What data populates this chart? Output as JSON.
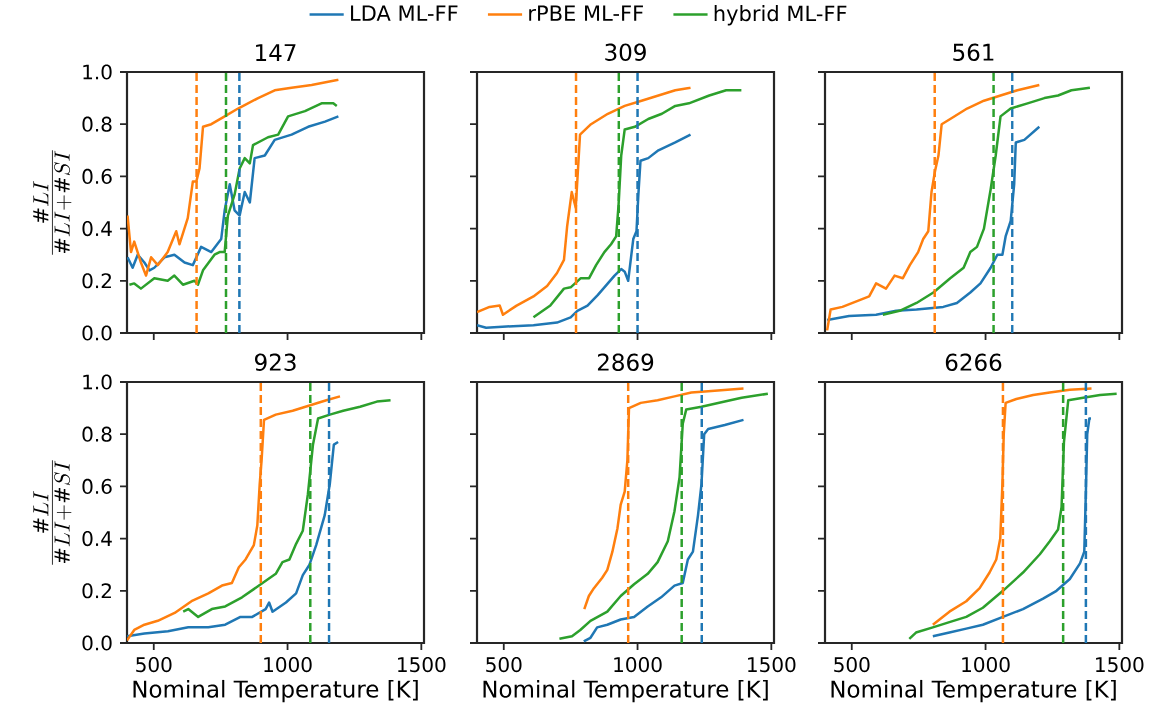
{
  "chart_data": [
    {
      "type": "line",
      "title": "147",
      "ylabel": "\\frac{\\#LI}{\\#LI + \\#SI}",
      "legend": "top",
      "tick_labels": "y",
      "xlim": [
        400,
        1510
      ],
      "ylim": [
        0,
        1
      ],
      "xticks": [
        500,
        1000,
        1500
      ],
      "yticks": [
        {
          "value": 0,
          "label": "0.0"
        },
        {
          "value": 0.2,
          "label": "0.2"
        },
        {
          "value": 0.4,
          "label": "0.4"
        },
        {
          "value": 0.6,
          "label": "0.6"
        },
        {
          "value": 0.8,
          "label": "0.8"
        },
        {
          "value": 1,
          "label": "1.0"
        }
      ],
      "series": [
        {
          "name": "LDA ML-FF",
          "color": "#1f77b4",
          "x": [
            402,
            421,
            440,
            465,
            484,
            502,
            540,
            577,
            615,
            646,
            677,
            715,
            752,
            765,
            784,
            802,
            821,
            840,
            859,
            877,
            915,
            952,
            1015,
            1077,
            1140,
            1190
          ],
          "values": [
            0.29,
            0.25,
            0.3,
            0.27,
            0.24,
            0.25,
            0.29,
            0.3,
            0.27,
            0.26,
            0.33,
            0.31,
            0.36,
            0.47,
            0.57,
            0.47,
            0.45,
            0.54,
            0.5,
            0.67,
            0.68,
            0.74,
            0.76,
            0.79,
            0.81,
            0.83
          ]
        },
        {
          "name": "rPBE ML-FF",
          "color": "#ff7f0e",
          "x": [
            402,
            415,
            427,
            452,
            471,
            490,
            515,
            552,
            584,
            596,
            627,
            646,
            659,
            671,
            684,
            715,
            765,
            815,
            890,
            952,
            1015,
            1090,
            1190
          ],
          "values": [
            0.45,
            0.31,
            0.35,
            0.27,
            0.22,
            0.29,
            0.26,
            0.31,
            0.39,
            0.34,
            0.44,
            0.58,
            0.58,
            0.63,
            0.79,
            0.8,
            0.83,
            0.86,
            0.9,
            0.93,
            0.94,
            0.95,
            0.97
          ]
        },
        {
          "name": "hybrid ML-FF",
          "color": "#2ca02c",
          "x": [
            409,
            427,
            452,
            502,
            552,
            577,
            609,
            652,
            665,
            684,
            727,
            746,
            765,
            777,
            802,
            821,
            840,
            859,
            871,
            927,
            965,
            1002,
            1065,
            1127,
            1171,
            1184
          ],
          "values": [
            0.185,
            0.19,
            0.17,
            0.21,
            0.2,
            0.22,
            0.185,
            0.2,
            0.185,
            0.24,
            0.3,
            0.31,
            0.31,
            0.45,
            0.53,
            0.63,
            0.67,
            0.65,
            0.72,
            0.75,
            0.76,
            0.83,
            0.85,
            0.88,
            0.88,
            0.87
          ]
        }
      ],
      "ref_lines": [
        {
          "axis": "x",
          "value": 820,
          "color": "#1f77b4",
          "line_style": "dashed"
        },
        {
          "axis": "x",
          "value": 660,
          "color": "#ff7f0e",
          "line_style": "dashed"
        },
        {
          "axis": "x",
          "value": 770,
          "color": "#2ca02c",
          "line_style": "dashed"
        }
      ]
    },
    {
      "type": "line",
      "title": "309",
      "tick_labels": false,
      "xlim": [
        400,
        1510
      ],
      "ylim": [
        0,
        1
      ],
      "xticks": [
        500,
        1000,
        1500
      ],
      "yticks": [
        0,
        0.2,
        0.4,
        0.6,
        0.8,
        1
      ],
      "series": [
        {
          "color": "#1f77b4",
          "x": [
            400,
            434,
            510,
            611,
            699,
            750,
            775,
            813,
            851,
            889,
            914,
            939,
            952,
            965,
            984,
            996,
            1003,
            1011,
            1040,
            1078,
            1141,
            1198
          ],
          "values": [
            0.03,
            0.02,
            0.025,
            0.03,
            0.04,
            0.06,
            0.085,
            0.105,
            0.145,
            0.19,
            0.22,
            0.245,
            0.235,
            0.2,
            0.36,
            0.39,
            0.53,
            0.66,
            0.67,
            0.7,
            0.73,
            0.76
          ]
        },
        {
          "color": "#ff7f0e",
          "x": [
            400,
            447,
            485,
            497,
            548,
            611,
            662,
            699,
            725,
            737,
            754,
            769,
            785,
            826,
            889,
            952,
            1015,
            1078,
            1141,
            1198
          ],
          "values": [
            0.08,
            0.1,
            0.105,
            0.07,
            0.105,
            0.14,
            0.18,
            0.23,
            0.28,
            0.41,
            0.54,
            0.48,
            0.76,
            0.8,
            0.84,
            0.87,
            0.89,
            0.91,
            0.93,
            0.94
          ]
        },
        {
          "color": "#2ca02c",
          "x": [
            611,
            674,
            725,
            750,
            788,
            819,
            845,
            876,
            901,
            920,
            929,
            939,
            952,
            990,
            1040,
            1091,
            1141,
            1192,
            1268,
            1331,
            1388
          ],
          "values": [
            0.06,
            0.105,
            0.17,
            0.175,
            0.21,
            0.21,
            0.26,
            0.31,
            0.34,
            0.37,
            0.49,
            0.68,
            0.78,
            0.79,
            0.82,
            0.84,
            0.87,
            0.88,
            0.91,
            0.93,
            0.93
          ]
        }
      ],
      "ref_lines": [
        {
          "axis": "x",
          "value": 1000,
          "color": "#1f77b4",
          "line_style": "dashed"
        },
        {
          "axis": "x",
          "value": 770,
          "color": "#ff7f0e",
          "line_style": "dashed"
        },
        {
          "axis": "x",
          "value": 930,
          "color": "#2ca02c",
          "line_style": "dashed"
        }
      ]
    },
    {
      "type": "line",
      "title": "561",
      "tick_labels": false,
      "xlim": [
        400,
        1510
      ],
      "ylim": [
        0,
        1
      ],
      "xticks": [
        500,
        1000,
        1500
      ],
      "yticks": [
        0,
        0.2,
        0.4,
        0.6,
        0.8,
        1
      ],
      "series": [
        {
          "color": "#1f77b4",
          "x": [
            408,
            490,
            591,
            666,
            742,
            792,
            842,
            893,
            943,
            981,
            1019,
            1044,
            1063,
            1075,
            1094,
            1107,
            1113,
            1145,
            1201
          ],
          "values": [
            0.05,
            0.065,
            0.07,
            0.085,
            0.09,
            0.095,
            0.1,
            0.115,
            0.155,
            0.19,
            0.25,
            0.3,
            0.3,
            0.37,
            0.43,
            0.57,
            0.73,
            0.74,
            0.79
          ]
        },
        {
          "color": "#ff7f0e",
          "x": [
            408,
            421,
            465,
            515,
            565,
            591,
            628,
            660,
            691,
            717,
            748,
            767,
            786,
            798,
            811,
            824,
            836,
            868,
            931,
            994,
            1056,
            1119,
            1201
          ],
          "values": [
            0.01,
            0.09,
            0.1,
            0.12,
            0.14,
            0.19,
            0.17,
            0.22,
            0.21,
            0.26,
            0.31,
            0.36,
            0.39,
            0.54,
            0.62,
            0.68,
            0.8,
            0.82,
            0.86,
            0.89,
            0.91,
            0.93,
            0.95
          ]
        },
        {
          "color": "#2ca02c",
          "x": [
            616,
            679,
            742,
            805,
            868,
            918,
            943,
            968,
            994,
            1019,
            1038,
            1056,
            1094,
            1157,
            1220,
            1271,
            1321,
            1390
          ],
          "values": [
            0.07,
            0.085,
            0.115,
            0.155,
            0.21,
            0.25,
            0.31,
            0.33,
            0.4,
            0.55,
            0.68,
            0.83,
            0.86,
            0.88,
            0.9,
            0.91,
            0.93,
            0.94
          ]
        }
      ],
      "ref_lines": [
        {
          "axis": "x",
          "value": 1100,
          "color": "#1f77b4",
          "line_style": "dashed"
        },
        {
          "axis": "x",
          "value": 810,
          "color": "#ff7f0e",
          "line_style": "dashed"
        },
        {
          "axis": "x",
          "value": 1030,
          "color": "#2ca02c",
          "line_style": "dashed"
        }
      ]
    },
    {
      "type": "line",
      "title": "923",
      "xlabel": "Nominal Temperature [K]",
      "ylabel": "\\frac{\\#LI}{\\#LI + \\#SI}",
      "xlim": [
        400,
        1510
      ],
      "ylim": [
        0,
        1
      ],
      "xticks": [
        500,
        1000,
        1500
      ],
      "yticks": [
        {
          "value": 0,
          "label": "0.0"
        },
        {
          "value": 0.2,
          "label": "0.2"
        },
        {
          "value": 0.4,
          "label": "0.4"
        },
        {
          "value": 0.6,
          "label": "0.6"
        },
        {
          "value": 0.8,
          "label": "0.8"
        },
        {
          "value": 1,
          "label": "1.0"
        }
      ],
      "series": [
        {
          "color": "#1f77b4",
          "x": [
            400,
            465,
            553,
            629,
            704,
            767,
            824,
            868,
            918,
            931,
            944,
            994,
            1032,
            1057,
            1082,
            1107,
            1139,
            1158,
            1173,
            1189
          ],
          "values": [
            0.026,
            0.036,
            0.045,
            0.06,
            0.06,
            0.07,
            0.1,
            0.1,
            0.13,
            0.155,
            0.12,
            0.155,
            0.19,
            0.26,
            0.3,
            0.375,
            0.49,
            0.61,
            0.76,
            0.77
          ]
        },
        {
          "color": "#ff7f0e",
          "x": [
            400,
            427,
            465,
            515,
            578,
            641,
            704,
            755,
            792,
            818,
            843,
            874,
            887,
            896,
            903,
            912,
            956,
            1019,
            1082,
            1145,
            1196
          ],
          "values": [
            0.01,
            0.05,
            0.07,
            0.085,
            0.115,
            0.16,
            0.19,
            0.22,
            0.23,
            0.29,
            0.32,
            0.375,
            0.45,
            0.61,
            0.7,
            0.855,
            0.875,
            0.89,
            0.91,
            0.93,
            0.945
          ]
        },
        {
          "color": "#2ca02c",
          "x": [
            610,
            629,
            666,
            717,
            767,
            830,
            893,
            956,
            981,
            1007,
            1032,
            1057,
            1076,
            1095,
            1114,
            1158,
            1208,
            1271,
            1334,
            1385
          ],
          "values": [
            0.12,
            0.13,
            0.1,
            0.13,
            0.14,
            0.175,
            0.22,
            0.265,
            0.31,
            0.32,
            0.38,
            0.43,
            0.57,
            0.76,
            0.86,
            0.875,
            0.89,
            0.905,
            0.925,
            0.93
          ]
        }
      ],
      "ref_lines": [
        {
          "axis": "x",
          "value": 1155,
          "color": "#1f77b4",
          "line_style": "dashed"
        },
        {
          "axis": "x",
          "value": 900,
          "color": "#ff7f0e",
          "line_style": "dashed"
        },
        {
          "axis": "x",
          "value": 1085,
          "color": "#2ca02c",
          "line_style": "dashed"
        }
      ]
    },
    {
      "type": "line",
      "title": "2869",
      "xlabel": "Nominal Temperature [K]",
      "tick_labels": "x",
      "xlim": [
        400,
        1510
      ],
      "ylim": [
        0,
        1
      ],
      "xticks": [
        500,
        1000,
        1500
      ],
      "yticks": [
        0,
        0.2,
        0.4,
        0.6,
        0.8,
        1
      ],
      "series": [
        {
          "color": "#1f77b4",
          "x": [
            799,
            824,
            849,
            887,
            937,
            987,
            1038,
            1088,
            1138,
            1169,
            1188,
            1207,
            1226,
            1239,
            1249,
            1264,
            1326,
            1396
          ],
          "values": [
            0.006,
            0.02,
            0.06,
            0.07,
            0.09,
            0.1,
            0.14,
            0.175,
            0.22,
            0.23,
            0.32,
            0.35,
            0.49,
            0.61,
            0.8,
            0.82,
            0.835,
            0.855
          ]
        },
        {
          "color": "#ff7f0e",
          "x": [
            801,
            818,
            837,
            868,
            887,
            906,
            925,
            937,
            952,
            962,
            968,
            1012,
            1075,
            1138,
            1201,
            1264,
            1396
          ],
          "values": [
            0.13,
            0.18,
            0.21,
            0.25,
            0.28,
            0.35,
            0.44,
            0.53,
            0.58,
            0.7,
            0.9,
            0.92,
            0.93,
            0.945,
            0.96,
            0.965,
            0.975
          ]
        },
        {
          "color": "#2ca02c",
          "x": [
            708,
            755,
            786,
            824,
            887,
            937,
            987,
            1038,
            1075,
            1113,
            1138,
            1157,
            1169,
            1182,
            1239,
            1326,
            1389,
            1487
          ],
          "values": [
            0.016,
            0.026,
            0.05,
            0.085,
            0.12,
            0.18,
            0.225,
            0.265,
            0.31,
            0.39,
            0.505,
            0.635,
            0.84,
            0.895,
            0.905,
            0.925,
            0.94,
            0.955
          ]
        }
      ],
      "ref_lines": [
        {
          "axis": "x",
          "value": 1240,
          "color": "#1f77b4",
          "line_style": "dashed"
        },
        {
          "axis": "x",
          "value": 965,
          "color": "#ff7f0e",
          "line_style": "dashed"
        },
        {
          "axis": "x",
          "value": 1165,
          "color": "#2ca02c",
          "line_style": "dashed"
        }
      ]
    },
    {
      "type": "line",
      "title": "6266",
      "xlabel": "Nominal Temperature [K]",
      "tick_labels": "x",
      "xlim": [
        400,
        1510
      ],
      "ylim": [
        0,
        1
      ],
      "xticks": [
        500,
        1000,
        1500
      ],
      "yticks": [
        0,
        0.2,
        0.4,
        0.6,
        0.8,
        1
      ],
      "series": [
        {
          "color": "#1f77b4",
          "x": [
            803,
            865,
            928,
            990,
            1065,
            1140,
            1215,
            1265,
            1315,
            1353,
            1369,
            1375,
            1380,
            1388,
            1394
          ],
          "values": [
            0.026,
            0.04,
            0.055,
            0.07,
            0.1,
            0.13,
            0.17,
            0.2,
            0.245,
            0.305,
            0.35,
            0.58,
            0.8,
            0.86,
            0.86
          ]
        },
        {
          "color": "#ff7f0e",
          "x": [
            803,
            865,
            928,
            978,
            1015,
            1040,
            1055,
            1063,
            1068,
            1075,
            1115,
            1178,
            1240,
            1315,
            1396
          ],
          "values": [
            0.07,
            0.12,
            0.16,
            0.21,
            0.27,
            0.32,
            0.4,
            0.61,
            0.8,
            0.92,
            0.935,
            0.95,
            0.96,
            0.97,
            0.975
          ]
        },
        {
          "color": "#2ca02c",
          "x": [
            715,
            740,
            803,
            865,
            928,
            990,
            1065,
            1140,
            1203,
            1240,
            1271,
            1284,
            1293,
            1309,
            1365,
            1428,
            1490
          ],
          "values": [
            0.016,
            0.04,
            0.06,
            0.08,
            0.1,
            0.135,
            0.2,
            0.27,
            0.34,
            0.39,
            0.435,
            0.52,
            0.77,
            0.93,
            0.94,
            0.95,
            0.955
          ]
        }
      ],
      "ref_lines": [
        {
          "axis": "x",
          "value": 1375,
          "color": "#1f77b4",
          "line_style": "dashed"
        },
        {
          "axis": "x",
          "value": 1065,
          "color": "#ff7f0e",
          "line_style": "dashed"
        },
        {
          "axis": "x",
          "value": 1290,
          "color": "#2ca02c",
          "line_style": "dashed"
        }
      ]
    }
  ]
}
